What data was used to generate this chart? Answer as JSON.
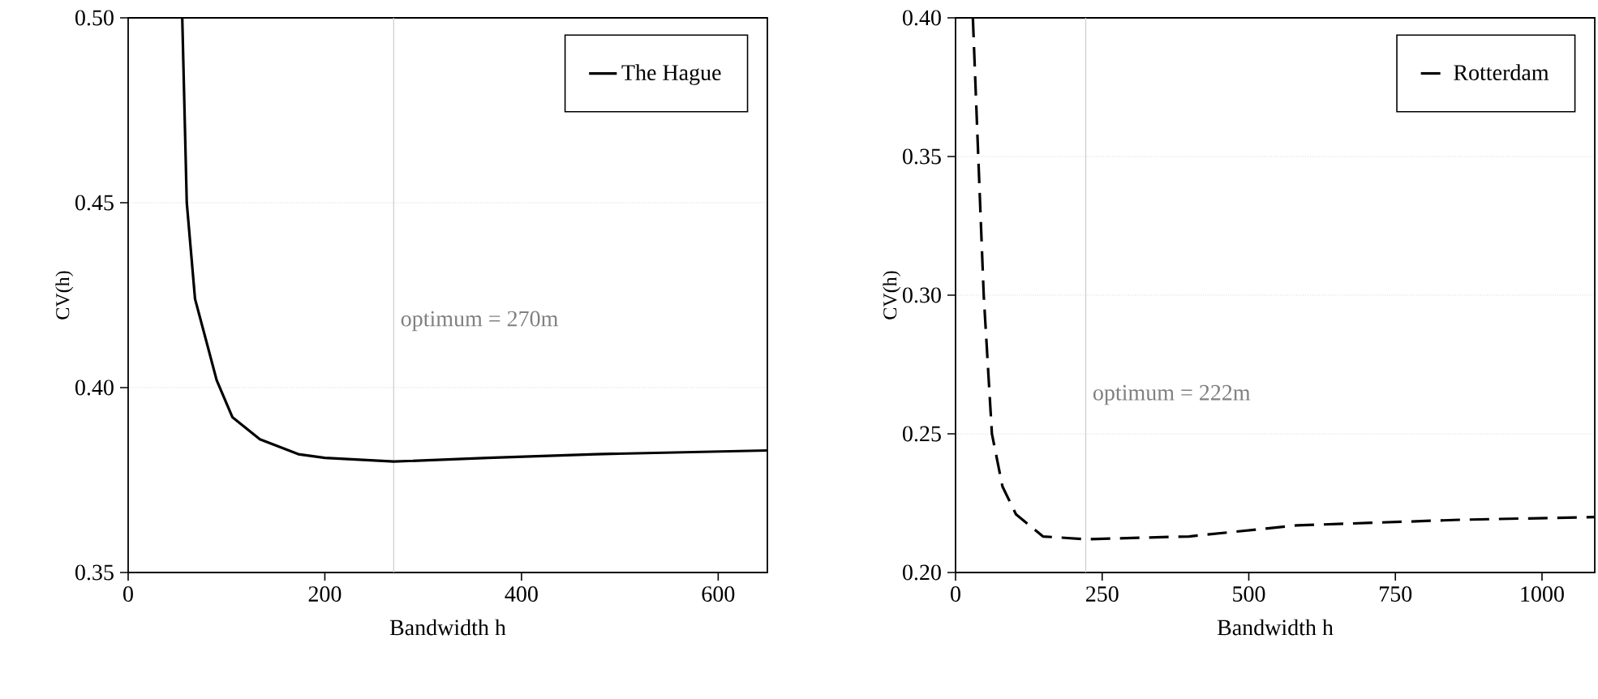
{
  "chart_data": [
    {
      "type": "line",
      "xlabel": "Bandwidth h",
      "ylabel": "CV(h)",
      "xlim": [
        0,
        650
      ],
      "ylim": [
        0.35,
        0.5
      ],
      "xticks": [
        0,
        200,
        400,
        600
      ],
      "yticks": [
        {
          "value": 0.35,
          "label": "0.35"
        },
        {
          "value": 0.4,
          "label": "0.40"
        },
        {
          "value": 0.45,
          "label": "0.45"
        },
        {
          "value": 0.5,
          "label": "0.50"
        }
      ],
      "grid": "y",
      "legend": "top right",
      "series": [
        {
          "name": "The Hague",
          "color": "#000000",
          "line_style": "solid",
          "x": [
            55,
            59.6,
            68,
            90,
            106,
            134,
            173,
            200,
            270,
            366,
            476,
            650
          ],
          "values": [
            0.5,
            0.45,
            0.424,
            0.402,
            0.392,
            0.386,
            0.382,
            0.381,
            0.38,
            0.381,
            0.382,
            0.383
          ]
        }
      ],
      "ref_lines": [
        {
          "axis": "x",
          "value": 270,
          "color": "#cccccc"
        }
      ],
      "annotations": [
        {
          "text": "optimum = 270m",
          "x": 270,
          "y": 0.418
        }
      ]
    },
    {
      "type": "line",
      "xlabel": "Bandwidth h",
      "ylabel": "CV(h)",
      "xlim": [
        0,
        1090
      ],
      "ylim": [
        0.2,
        0.4
      ],
      "xticks": [
        0,
        250,
        500,
        750,
        1000
      ],
      "yticks": [
        {
          "value": 0.2,
          "label": "0.20"
        },
        {
          "value": 0.25,
          "label": "0.25"
        },
        {
          "value": 0.3,
          "label": "0.30"
        },
        {
          "value": 0.35,
          "label": "0.35"
        },
        {
          "value": 0.4,
          "label": "0.40"
        }
      ],
      "grid": "y",
      "legend": "top right",
      "series": [
        {
          "name": "Rotterdam",
          "color": "#000000",
          "line_style": "dashed",
          "x": [
            29.5,
            38.7,
            48,
            62,
            80,
            103,
            149,
            223,
            398,
            582,
            859,
            1089
          ],
          "values": [
            0.4,
            0.35,
            0.3,
            0.25,
            0.231,
            0.221,
            0.213,
            0.212,
            0.213,
            0.217,
            0.219,
            0.22
          ]
        }
      ],
      "ref_lines": [
        {
          "axis": "x",
          "value": 222,
          "color": "#cccccc"
        }
      ],
      "annotations": [
        {
          "text": "optimum = 222m",
          "x": 222,
          "y": 0.264
        }
      ]
    }
  ]
}
